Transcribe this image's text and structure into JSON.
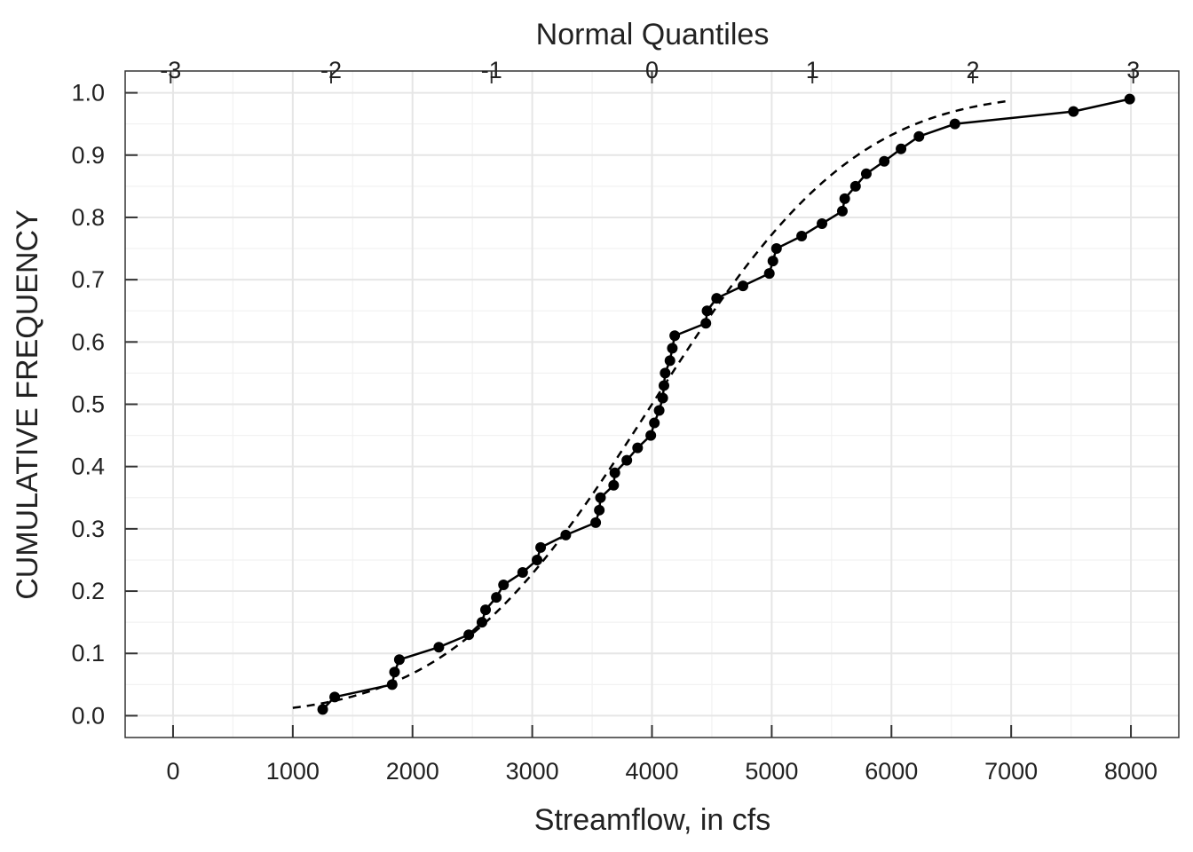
{
  "chart_data": {
    "type": "line",
    "xlabel": "Streamflow, in cfs",
    "ylabel": "CUMULATIVE FREQUENCY",
    "top_axis_label": "Normal Quantiles",
    "xlim": [
      -400,
      8400
    ],
    "ylim": [
      -0.035,
      1.035
    ],
    "x_ticks": [
      0,
      1000,
      2000,
      3000,
      4000,
      5000,
      6000,
      7000,
      8000
    ],
    "x_tick_labels": [
      "0",
      "1000",
      "2000",
      "3000",
      "4000",
      "5000",
      "6000",
      "7000",
      "8000"
    ],
    "y_ticks": [
      0.0,
      0.1,
      0.2,
      0.3,
      0.4,
      0.5,
      0.6,
      0.7,
      0.8,
      0.9,
      1.0
    ],
    "y_tick_labels": [
      "0.0",
      "0.1",
      "0.2",
      "0.3",
      "0.4",
      "0.5",
      "0.6",
      "0.7",
      "0.8",
      "0.9",
      "1.0"
    ],
    "top_ticks": [
      -3,
      -2,
      -1,
      0,
      1,
      2,
      3
    ],
    "top_tick_labels": [
      "-3",
      "-2",
      "-1",
      "0",
      "1",
      "2",
      "3"
    ],
    "top_axis_mean": 4000,
    "top_axis_sd": 1340,
    "grid": true,
    "series": [
      {
        "style": "solid-with-markers",
        "color": "#000000",
        "x": [
          1250,
          1350,
          1830,
          1850,
          1890,
          2220,
          2470,
          2580,
          2610,
          2700,
          2760,
          2920,
          3040,
          3070,
          3280,
          3530,
          3560,
          3570,
          3680,
          3690,
          3790,
          3880,
          3990,
          4020,
          4060,
          4090,
          4100,
          4110,
          4150,
          4170,
          4190,
          4450,
          4460,
          4540,
          4760,
          4980,
          5010,
          5040,
          5250,
          5420,
          5590,
          5610,
          5700,
          5790,
          5940,
          6080,
          6230,
          6530,
          7520,
          7990
        ],
        "y": [
          0.01,
          0.03,
          0.05,
          0.07,
          0.09,
          0.11,
          0.13,
          0.15,
          0.17,
          0.19,
          0.21,
          0.23,
          0.25,
          0.27,
          0.29,
          0.31,
          0.33,
          0.35,
          0.37,
          0.39,
          0.41,
          0.43,
          0.45,
          0.47,
          0.49,
          0.51,
          0.53,
          0.55,
          0.57,
          0.59,
          0.61,
          0.63,
          0.65,
          0.67,
          0.69,
          0.71,
          0.73,
          0.75,
          0.77,
          0.79,
          0.81,
          0.83,
          0.85,
          0.87,
          0.89,
          0.91,
          0.93,
          0.95,
          0.97,
          0.99
        ]
      },
      {
        "style": "dashed",
        "color": "#000000",
        "distribution": "normal",
        "mean": 4000,
        "sd": 1340,
        "x_range": [
          1000,
          7000
        ]
      }
    ]
  }
}
